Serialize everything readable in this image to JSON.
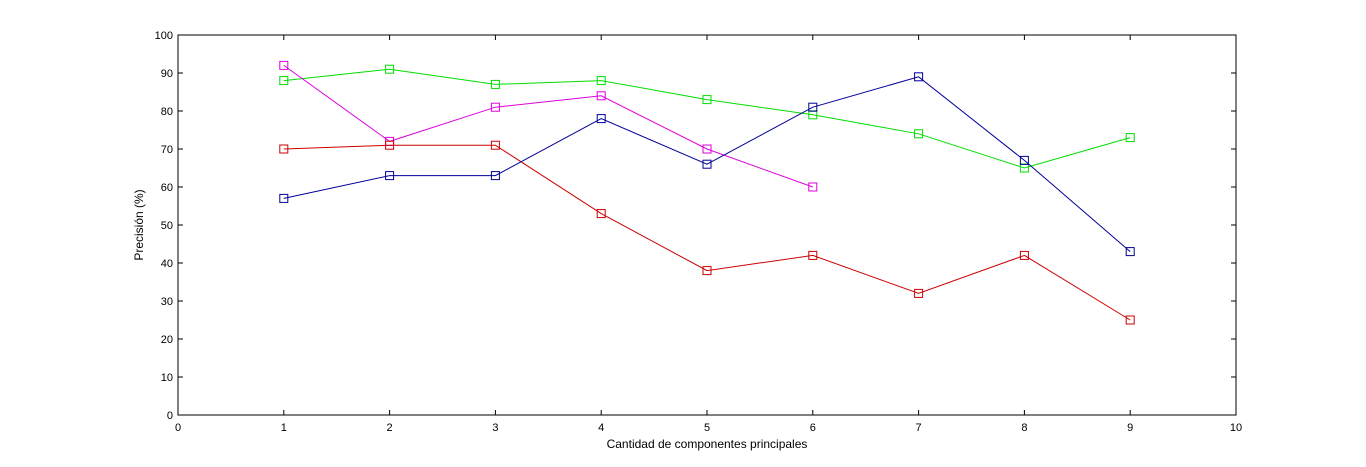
{
  "chart_data": {
    "type": "line",
    "title": "",
    "xlabel": "Cantidad de componentes principales",
    "ylabel": "Precisión (%)",
    "xlim": [
      0,
      10
    ],
    "ylim": [
      0,
      100
    ],
    "xticks": [
      0,
      1,
      2,
      3,
      4,
      5,
      6,
      7,
      8,
      9,
      10
    ],
    "yticks": [
      0,
      10,
      20,
      30,
      40,
      50,
      60,
      70,
      80,
      90,
      100
    ],
    "grid": false,
    "marker": "square",
    "series": [
      {
        "color": "#00dd00",
        "x": [
          1,
          2,
          3,
          4,
          5,
          6,
          7,
          8,
          9
        ],
        "y": [
          88,
          91,
          87,
          88,
          83,
          79,
          74,
          65,
          73
        ]
      },
      {
        "color": "#dd00dd",
        "x": [
          1,
          2,
          3,
          4,
          5,
          6
        ],
        "y": [
          92,
          72,
          81,
          84,
          70,
          60
        ]
      },
      {
        "color": "#cc0000",
        "x": [
          1,
          2,
          3,
          4,
          5,
          6,
          7,
          8,
          9
        ],
        "y": [
          70,
          71,
          71,
          53,
          38,
          42,
          32,
          42,
          25
        ]
      },
      {
        "color": "#000099",
        "x": [
          1,
          2,
          3,
          4,
          5,
          6,
          7,
          8,
          9
        ],
        "y": [
          57,
          63,
          63,
          78,
          66,
          81,
          89,
          67,
          43
        ]
      }
    ]
  }
}
